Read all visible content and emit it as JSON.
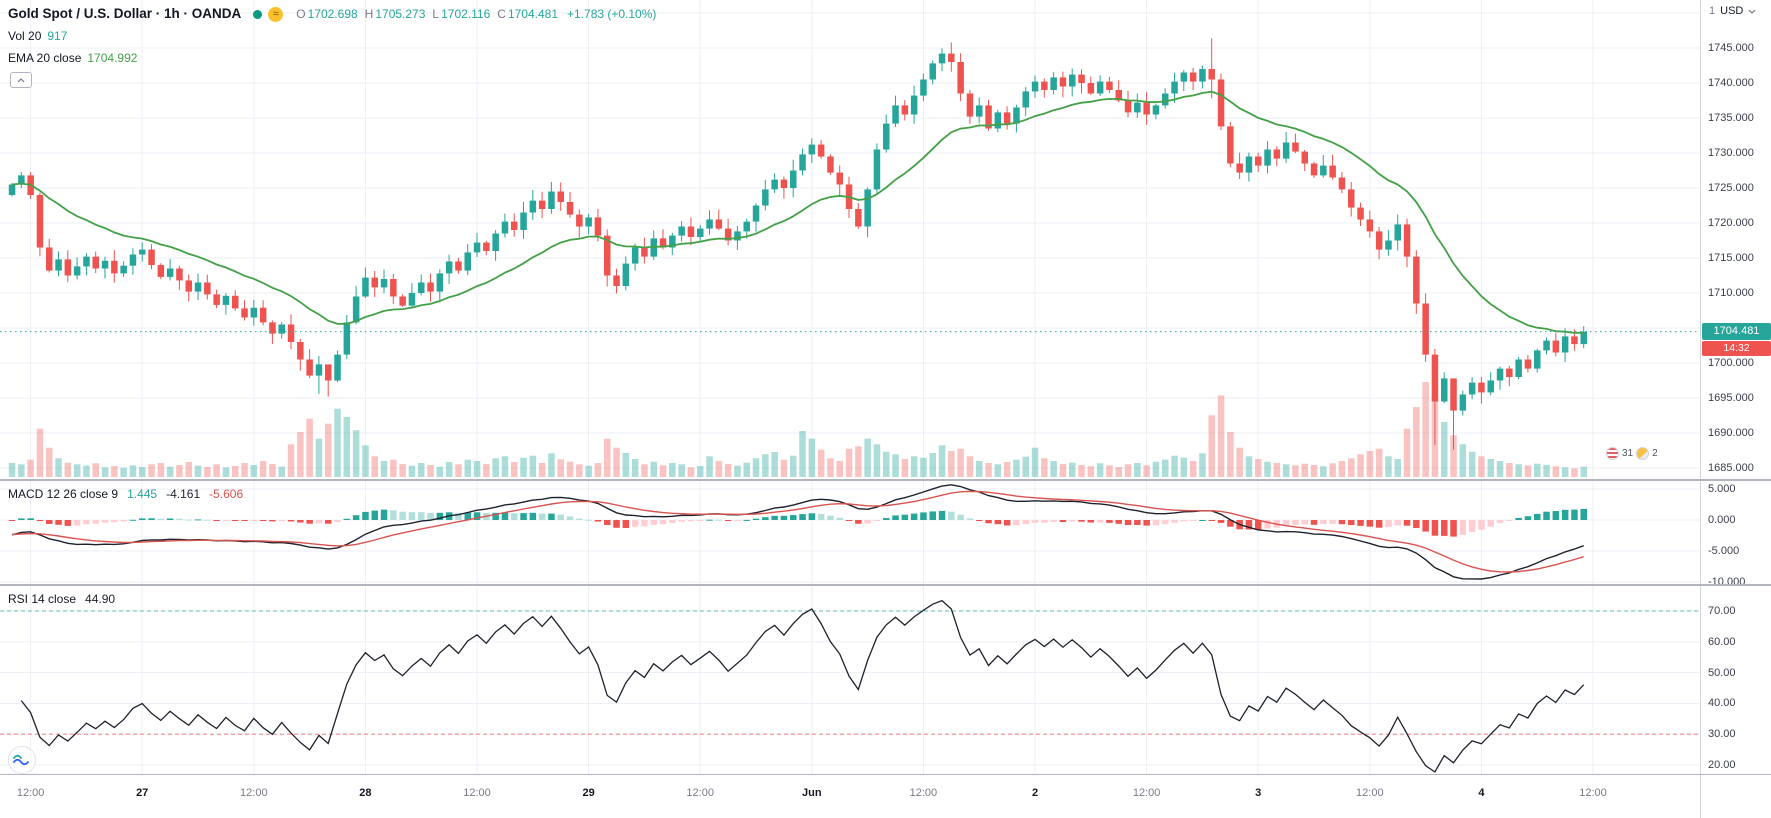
{
  "header": {
    "symbol_title": "Gold Spot / U.S. Dollar · 1h · OANDA",
    "ohlc": {
      "o_label": "O",
      "o": "1702.698",
      "h_label": "H",
      "h": "1705.273",
      "l_label": "L",
      "l": "1702.116",
      "c_label": "C",
      "c": "1704.481",
      "change": "+1.783 (+0.10%)"
    },
    "volume_row": {
      "label": "Vol 20",
      "value": "917"
    },
    "ema_row": {
      "label": "EMA 20 close",
      "value": "1704.992"
    }
  },
  "icons": {
    "wave": "≈"
  },
  "price_scale": {
    "currency_button_unit": "1",
    "currency_button_label": "USD",
    "labels": [
      "1745.000",
      "1740.000",
      "1735.000",
      "1730.000",
      "1725.000",
      "1720.000",
      "1715.000",
      "1710.000",
      "1705.000",
      "1700.000",
      "1695.000",
      "1690.000",
      "1685.000"
    ],
    "current_price": "1704.481",
    "countdown": "14:32"
  },
  "macd_panel": {
    "title": "MACD 12 26 close 9",
    "hist_value": "1.445",
    "macd_value": "-4.161",
    "signal_value": "-5.606",
    "axis_labels": [
      "5.000",
      "0.000",
      "-5.000",
      "-10.000"
    ]
  },
  "rsi_panel": {
    "title": "RSI 14 close",
    "value": "44.90",
    "axis_labels": [
      "70.00",
      "60.00",
      "50.00",
      "40.00",
      "30.00",
      "20.00"
    ]
  },
  "events": [
    {
      "icon": "us-flag-event-icon",
      "label": "31"
    },
    {
      "icon": "event-icon",
      "label": "2"
    }
  ],
  "colors": {
    "up": "#26a69a",
    "down": "#ef5350",
    "vol_up": "rgba(38,166,154,0.38)",
    "vol_down": "rgba(239,83,80,0.35)",
    "ema": "#43a047",
    "grid": "#eceff5",
    "macd_line": "#1e222d",
    "signal_line": "#d9534f",
    "hist_up": "#26a69a",
    "hist_up_fade": "#b2dfdb",
    "hist_dn": "#ef5350",
    "hist_dn_fade": "#ffcdd2",
    "rsi_line": "#1e222d",
    "band_up": "#26a69a",
    "band_dn": "#ef5350",
    "badge_up": "#26a69a",
    "countdown_bg": "#ef5350",
    "price_line": "#26a69a"
  },
  "chart_data": {
    "type": "candlestick",
    "title": "Gold Spot / U.S. Dollar, 1h, OANDA",
    "x_interval_hours": 1,
    "candles_count": 170,
    "open_first": 1724.0,
    "closes": [
      1725.5,
      1726.8,
      1724.0,
      1716.5,
      1713.2,
      1714.8,
      1712.5,
      1713.8,
      1715.2,
      1713.5,
      1714.6,
      1712.8,
      1713.9,
      1715.5,
      1716.2,
      1714.0,
      1712.3,
      1713.5,
      1711.8,
      1710.2,
      1711.5,
      1709.8,
      1708.3,
      1709.6,
      1707.8,
      1706.5,
      1707.9,
      1705.8,
      1704.2,
      1705.5,
      1703.0,
      1700.5,
      1698.2,
      1699.8,
      1697.5,
      1701.2,
      1705.8,
      1709.5,
      1712.2,
      1710.8,
      1712.0,
      1709.5,
      1708.2,
      1710.0,
      1711.5,
      1710.2,
      1712.8,
      1714.5,
      1713.2,
      1715.8,
      1717.2,
      1716.0,
      1718.5,
      1720.2,
      1719.0,
      1721.5,
      1723.2,
      1722.0,
      1724.5,
      1723.0,
      1721.2,
      1719.5,
      1720.8,
      1718.2,
      1712.5,
      1711.0,
      1714.2,
      1716.5,
      1715.2,
      1717.8,
      1716.5,
      1718.2,
      1719.5,
      1718.0,
      1719.2,
      1720.5,
      1719.2,
      1717.5,
      1718.8,
      1720.2,
      1722.5,
      1724.8,
      1726.2,
      1725.0,
      1727.5,
      1729.8,
      1731.2,
      1729.5,
      1727.2,
      1725.5,
      1722.0,
      1719.5,
      1724.8,
      1730.5,
      1734.2,
      1736.8,
      1735.5,
      1738.2,
      1740.5,
      1742.8,
      1744.2,
      1743.0,
      1738.5,
      1735.2,
      1736.8,
      1733.5,
      1735.8,
      1734.2,
      1736.5,
      1738.8,
      1740.2,
      1739.0,
      1740.8,
      1739.5,
      1741.2,
      1740.0,
      1738.5,
      1740.2,
      1739.0,
      1737.5,
      1735.8,
      1737.2,
      1735.5,
      1736.8,
      1738.5,
      1740.2,
      1741.5,
      1740.2,
      1742.0,
      1740.5,
      1733.8,
      1728.5,
      1727.2,
      1729.5,
      1728.2,
      1730.5,
      1729.2,
      1731.5,
      1730.2,
      1728.5,
      1726.8,
      1728.2,
      1726.5,
      1724.8,
      1722.2,
      1720.5,
      1718.8,
      1716.2,
      1717.5,
      1719.8,
      1715.2,
      1708.5,
      1701.2,
      1694.5,
      1697.8,
      1693.2,
      1695.5,
      1697.2,
      1695.8,
      1697.5,
      1699.2,
      1698.0,
      1700.5,
      1699.2,
      1701.8,
      1703.2,
      1701.5,
      1703.8,
      1702.698,
      1704.481
    ],
    "volumes": [
      420,
      380,
      520,
      1450,
      880,
      560,
      430,
      380,
      340,
      410,
      290,
      330,
      280,
      350,
      300,
      380,
      420,
      310,
      360,
      450,
      340,
      300,
      380,
      290,
      330,
      420,
      360,
      480,
      390,
      310,
      980,
      1350,
      1750,
      1150,
      1600,
      2050,
      1800,
      1400,
      950,
      620,
      480,
      520,
      390,
      340,
      420,
      360,
      310,
      450,
      380,
      520,
      480,
      390,
      560,
      620,
      450,
      580,
      640,
      420,
      710,
      530,
      460,
      380,
      340,
      420,
      1150,
      880,
      720,
      540,
      380,
      460,
      350,
      420,
      380,
      290,
      330,
      620,
      480,
      390,
      340,
      430,
      560,
      680,
      750,
      520,
      640,
      1380,
      1150,
      820,
      560,
      480,
      850,
      920,
      1150,
      980,
      760,
      680,
      540,
      620,
      580,
      720,
      950,
      780,
      850,
      620,
      480,
      420,
      380,
      450,
      520,
      610,
      880,
      560,
      480,
      390,
      430,
      360,
      320,
      410,
      350,
      300,
      380,
      420,
      350,
      460,
      520,
      640,
      580,
      480,
      710,
      1850,
      2450,
      1350,
      880,
      620,
      540,
      460,
      420,
      380,
      350,
      400,
      360,
      320,
      410,
      480,
      560,
      680,
      780,
      850,
      620,
      540,
      1450,
      2100,
      2850,
      2400,
      1650,
      1250,
      980,
      760,
      620,
      540,
      480,
      420,
      380,
      350,
      400,
      360,
      320,
      290,
      260,
      310
    ],
    "last_candle": {
      "o": 1702.698,
      "h": 1705.273,
      "l": 1702.116,
      "c": 1704.481
    },
    "wick_overrides": {
      "33": [
        1701.0,
        1695.6
      ],
      "34": [
        1699.0,
        1695.2
      ],
      "129": [
        1746.4,
        1737.8
      ],
      "153": [
        1702.0,
        1688.3
      ],
      "155": [
        1696.5,
        1687.6
      ]
    },
    "panes": [
      {
        "name": "price",
        "ylim": [
          1685,
          1745
        ],
        "tick_step": 5,
        "overlays": [
          "EMA 20",
          "Volume"
        ]
      },
      {
        "name": "macd",
        "params": [
          12,
          26,
          9
        ],
        "ylim": [
          -10,
          5
        ],
        "tick_step": 5,
        "last_values": {
          "hist": 1.445,
          "macd": -4.161,
          "signal": -5.606
        }
      },
      {
        "name": "rsi",
        "period": 14,
        "ylim": [
          20,
          70
        ],
        "tick_step": 10,
        "bands": [
          70,
          30
        ],
        "last_value": 44.9
      }
    ],
    "ema20_last": 1704.992,
    "vol_ma_last": 917,
    "current_price": 1704.481,
    "time_labels": [
      {
        "i": 2,
        "t": "12:00"
      },
      {
        "i": 14,
        "t": "27"
      },
      {
        "i": 26,
        "t": "12:00"
      },
      {
        "i": 38,
        "t": "28"
      },
      {
        "i": 50,
        "t": "12:00"
      },
      {
        "i": 62,
        "t": "29"
      },
      {
        "i": 74,
        "t": "12:00"
      },
      {
        "i": 86,
        "t": "Jun"
      },
      {
        "i": 98,
        "t": "12:00"
      },
      {
        "i": 110,
        "t": "2"
      },
      {
        "i": 122,
        "t": "12:00"
      },
      {
        "i": 134,
        "t": "3"
      },
      {
        "i": 146,
        "t": "12:00"
      },
      {
        "i": 158,
        "t": "4"
      },
      {
        "i": 170,
        "t": "12:00"
      }
    ]
  }
}
